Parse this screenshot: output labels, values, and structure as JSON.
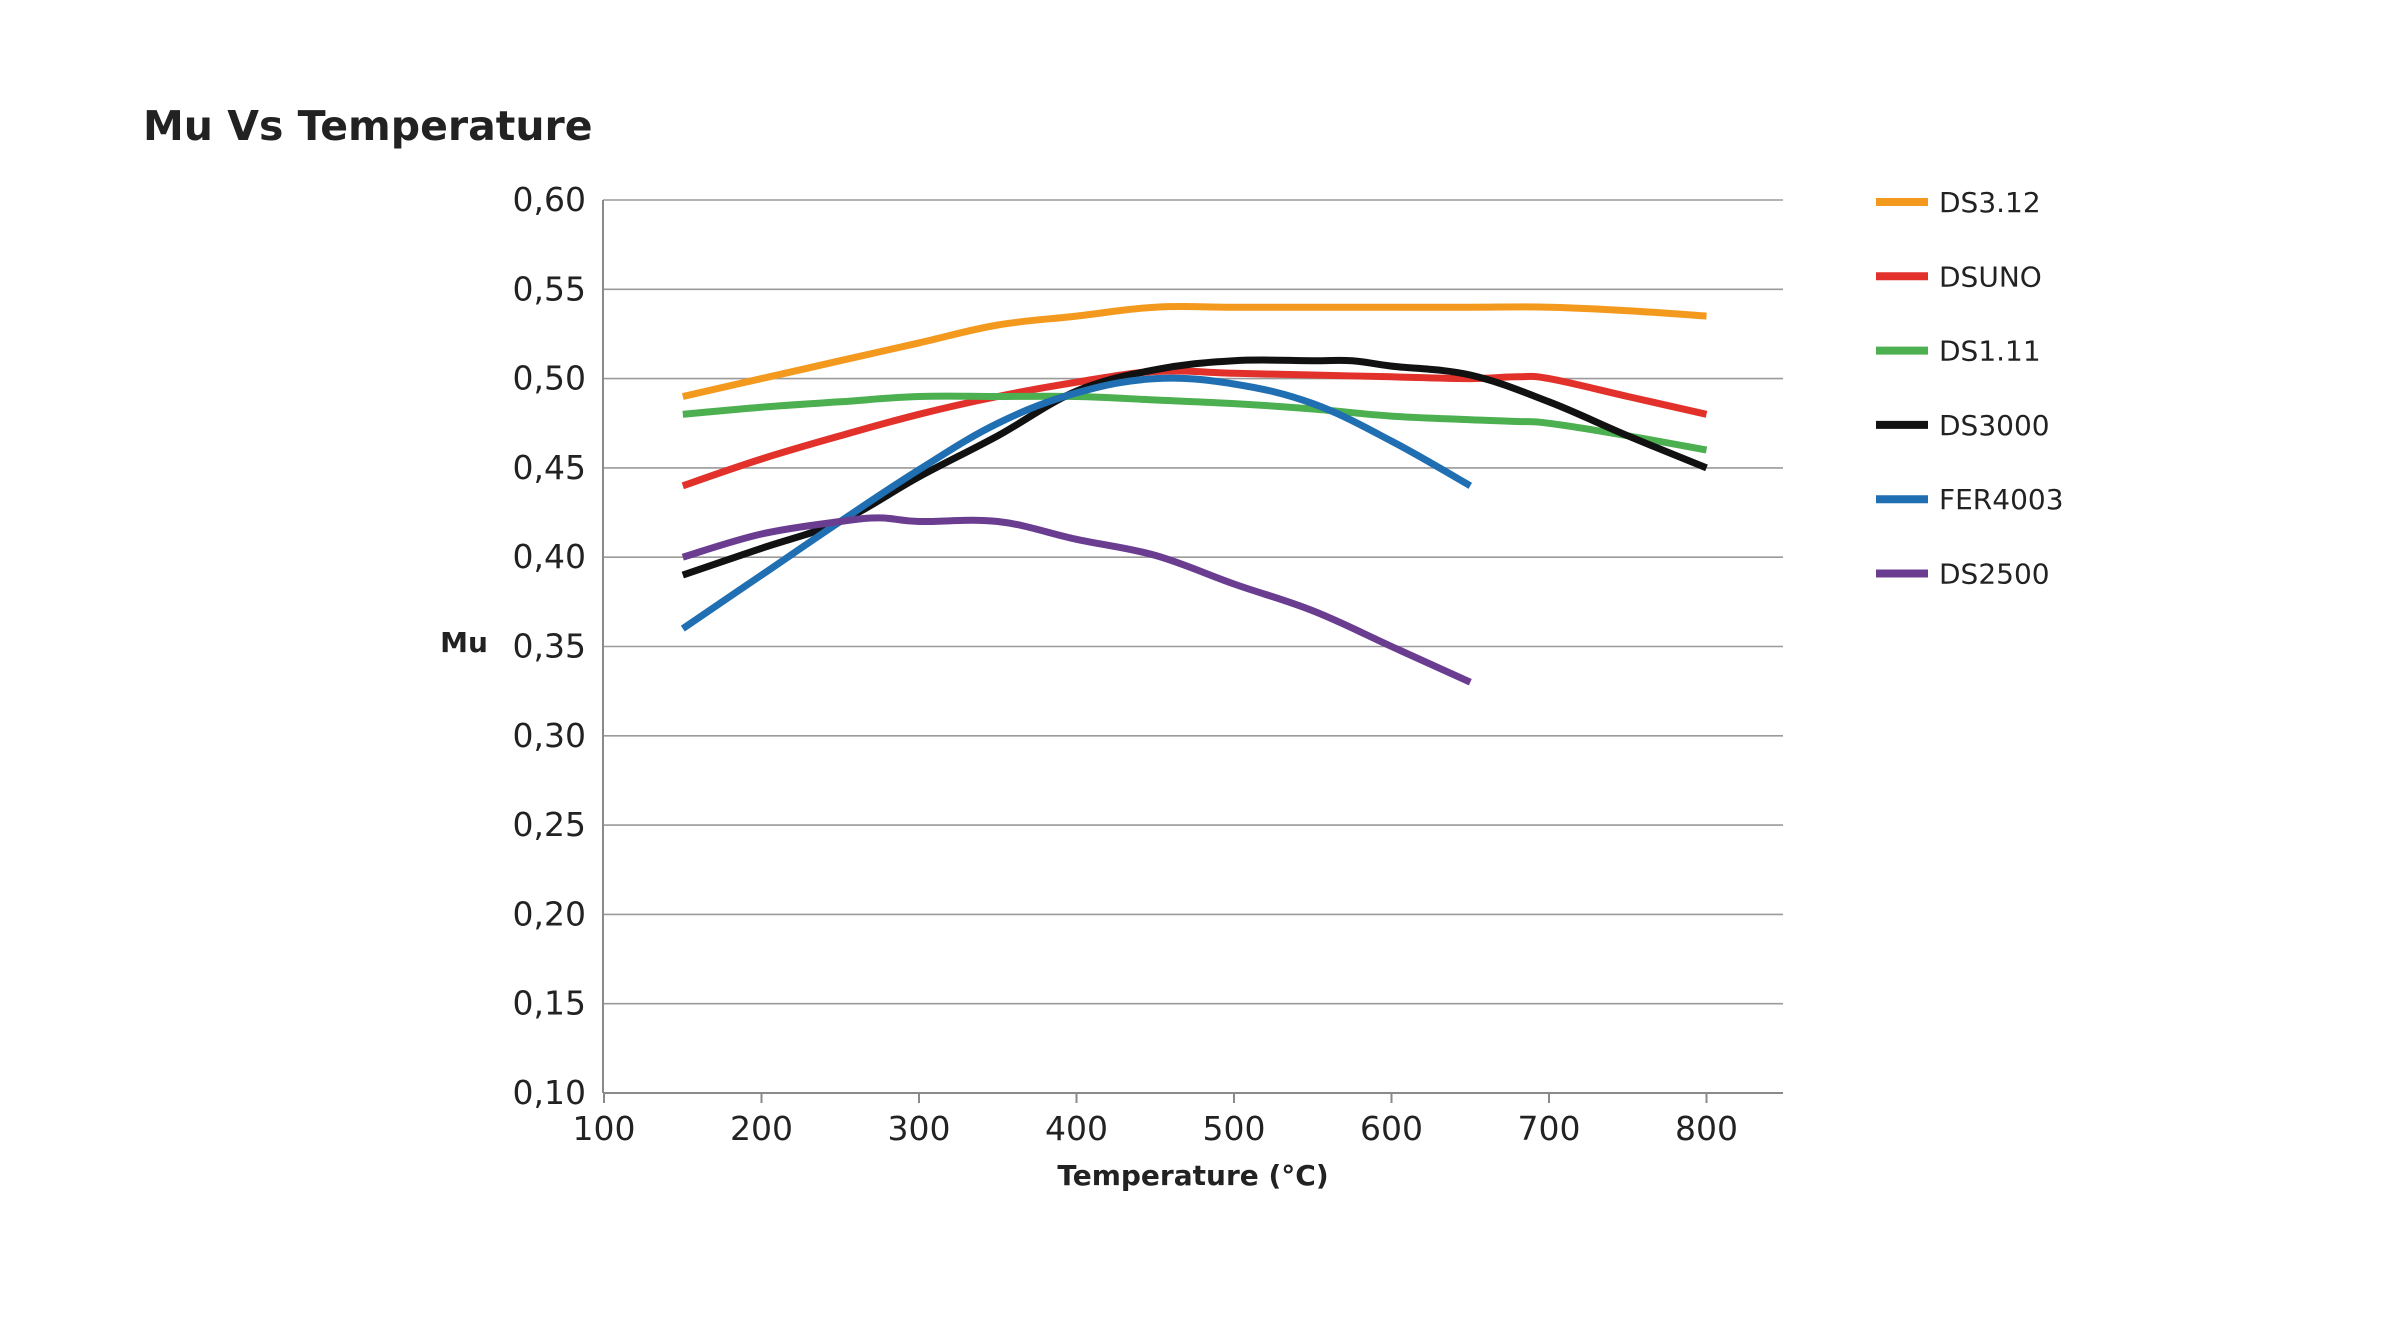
{
  "chart_data": {
    "type": "line",
    "title": "Mu Vs Temperature",
    "xlabel": "Temperature (°C)",
    "ylabel": "Mu",
    "xlim": [
      100,
      850
    ],
    "ylim": [
      0.1,
      0.6
    ],
    "x_ticks": [
      100,
      200,
      300,
      400,
      500,
      600,
      700,
      800
    ],
    "y_ticks": [
      0.1,
      0.15,
      0.2,
      0.25,
      0.3,
      0.35,
      0.4,
      0.45,
      0.5,
      0.55,
      0.6
    ],
    "x_tick_labels": [
      "100",
      "200",
      "300",
      "400",
      "500",
      "600",
      "700",
      "800"
    ],
    "y_tick_labels": [
      "0,10",
      "0,15",
      "0,20",
      "0,25",
      "0,30",
      "0,35",
      "0,40",
      "0,45",
      "0,50",
      "0,55",
      "0,60"
    ],
    "grid": "horizontal",
    "legend_position": "right",
    "series": [
      {
        "name": "DS3.12",
        "color": "#f39a1e",
        "points": [
          [
            150,
            0.49
          ],
          [
            200,
            0.5
          ],
          [
            250,
            0.51
          ],
          [
            300,
            0.52
          ],
          [
            350,
            0.53
          ],
          [
            400,
            0.535
          ],
          [
            450,
            0.54
          ],
          [
            500,
            0.54
          ],
          [
            550,
            0.54
          ],
          [
            600,
            0.54
          ],
          [
            650,
            0.54
          ],
          [
            700,
            0.54
          ],
          [
            750,
            0.538
          ],
          [
            800,
            0.535
          ]
        ]
      },
      {
        "name": "DSUNO",
        "color": "#e2312b",
        "points": [
          [
            150,
            0.44
          ],
          [
            200,
            0.455
          ],
          [
            250,
            0.468
          ],
          [
            300,
            0.48
          ],
          [
            350,
            0.49
          ],
          [
            400,
            0.498
          ],
          [
            450,
            0.504
          ],
          [
            500,
            0.503
          ],
          [
            550,
            0.502
          ],
          [
            600,
            0.501
          ],
          [
            650,
            0.5
          ],
          [
            680,
            0.501
          ],
          [
            700,
            0.5
          ],
          [
            750,
            0.49
          ],
          [
            800,
            0.48
          ]
        ]
      },
      {
        "name": "DS1.11",
        "color": "#4caf50",
        "points": [
          [
            150,
            0.48
          ],
          [
            200,
            0.484
          ],
          [
            250,
            0.487
          ],
          [
            300,
            0.49
          ],
          [
            350,
            0.49
          ],
          [
            400,
            0.49
          ],
          [
            450,
            0.488
          ],
          [
            500,
            0.486
          ],
          [
            550,
            0.483
          ],
          [
            600,
            0.479
          ],
          [
            650,
            0.477
          ],
          [
            680,
            0.476
          ],
          [
            700,
            0.475
          ],
          [
            750,
            0.468
          ],
          [
            800,
            0.46
          ]
        ]
      },
      {
        "name": "DS3000",
        "color": "#111111",
        "points": [
          [
            150,
            0.39
          ],
          [
            200,
            0.405
          ],
          [
            250,
            0.42
          ],
          [
            300,
            0.445
          ],
          [
            350,
            0.468
          ],
          [
            400,
            0.493
          ],
          [
            450,
            0.505
          ],
          [
            500,
            0.51
          ],
          [
            550,
            0.51
          ],
          [
            575,
            0.51
          ],
          [
            600,
            0.507
          ],
          [
            650,
            0.502
          ],
          [
            700,
            0.487
          ],
          [
            750,
            0.468
          ],
          [
            800,
            0.45
          ]
        ]
      },
      {
        "name": "FER4003",
        "color": "#1f6fb2",
        "points": [
          [
            150,
            0.36
          ],
          [
            200,
            0.39
          ],
          [
            250,
            0.42
          ],
          [
            300,
            0.449
          ],
          [
            350,
            0.475
          ],
          [
            400,
            0.492
          ],
          [
            450,
            0.5
          ],
          [
            500,
            0.497
          ],
          [
            550,
            0.486
          ],
          [
            600,
            0.465
          ],
          [
            650,
            0.44
          ]
        ]
      },
      {
        "name": "DS2500",
        "color": "#6b3d91",
        "points": [
          [
            150,
            0.4
          ],
          [
            200,
            0.413
          ],
          [
            250,
            0.42
          ],
          [
            275,
            0.422
          ],
          [
            300,
            0.42
          ],
          [
            350,
            0.42
          ],
          [
            400,
            0.41
          ],
          [
            450,
            0.401
          ],
          [
            500,
            0.385
          ],
          [
            550,
            0.37
          ],
          [
            600,
            0.35
          ],
          [
            650,
            0.33
          ]
        ]
      }
    ]
  }
}
